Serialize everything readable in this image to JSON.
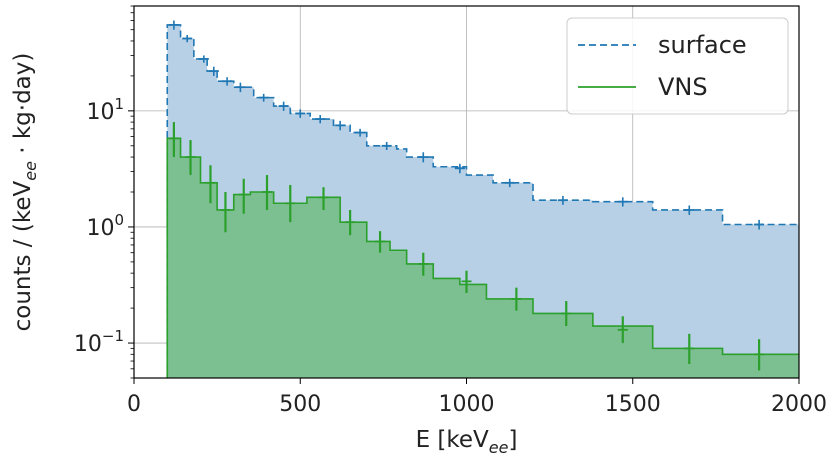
{
  "chart_data": {
    "type": "step-histogram",
    "xlabel_prefix": "E [keV",
    "xlabel_sub": "ee",
    "xlabel_suffix": "]",
    "ylabel_prefix": "counts / (keV",
    "ylabel_sub": "ee",
    "ylabel_suffix": " · kg·day)",
    "xlim": [
      0,
      2000
    ],
    "ylim": [
      0.05,
      80
    ],
    "yscale": "log",
    "grid": true,
    "legend_position": "upper right",
    "x_ticks": [
      0,
      500,
      1000,
      1500,
      2000
    ],
    "y_ticks": [
      {
        "value": 10,
        "base": "10",
        "exp": "1"
      },
      {
        "value": 1,
        "base": "10",
        "exp": "0"
      },
      {
        "value": 0.1,
        "base": "10",
        "exp": "−1"
      }
    ],
    "series": [
      {
        "name": "surface",
        "style": "dashed",
        "color": "#1f77b4",
        "fill": "#b7d0e5",
        "bins": [
          [
            100,
            140,
            55
          ],
          [
            140,
            180,
            42
          ],
          [
            180,
            220,
            28
          ],
          [
            220,
            250,
            22
          ],
          [
            250,
            300,
            18
          ],
          [
            300,
            360,
            16
          ],
          [
            360,
            420,
            13
          ],
          [
            420,
            470,
            11
          ],
          [
            470,
            530,
            9.5
          ],
          [
            530,
            600,
            8.5
          ],
          [
            600,
            650,
            7.5
          ],
          [
            650,
            700,
            6.5
          ],
          [
            700,
            790,
            5.0
          ],
          [
            790,
            820,
            4.7
          ],
          [
            820,
            900,
            4.0
          ],
          [
            900,
            1000,
            3.3
          ],
          [
            1000,
            1080,
            2.8
          ],
          [
            1080,
            1200,
            2.4
          ],
          [
            1200,
            1380,
            1.7
          ],
          [
            1380,
            1560,
            1.65
          ],
          [
            1560,
            1770,
            1.4
          ],
          [
            1770,
            2000,
            1.05
          ]
        ],
        "errors": [
          [
            120,
            55,
            50,
            60
          ],
          [
            160,
            42,
            39,
            45
          ],
          [
            210,
            28,
            26,
            30
          ],
          [
            240,
            22,
            20,
            24
          ],
          [
            280,
            18,
            16.5,
            19.5
          ],
          [
            320,
            16,
            14.5,
            17.5
          ],
          [
            390,
            13,
            12,
            14
          ],
          [
            450,
            11,
            10,
            12
          ],
          [
            500,
            9.5,
            8.7,
            10.3
          ],
          [
            560,
            8.5,
            7.8,
            9.2
          ],
          [
            620,
            7.5,
            6.8,
            8.2
          ],
          [
            680,
            6.5,
            6.0,
            7.0
          ],
          [
            760,
            5.0,
            4.6,
            5.4
          ],
          [
            870,
            4.0,
            3.6,
            4.4
          ],
          [
            980,
            3.2,
            2.9,
            3.5
          ],
          [
            1130,
            2.4,
            2.2,
            2.6
          ],
          [
            1290,
            1.7,
            1.55,
            1.85
          ],
          [
            1470,
            1.65,
            1.5,
            1.8
          ],
          [
            1670,
            1.4,
            1.27,
            1.53
          ],
          [
            1880,
            1.05,
            0.95,
            1.15
          ]
        ]
      },
      {
        "name": "VNS",
        "style": "solid",
        "color": "#2ca02c",
        "fill": "#7cbf90",
        "bins": [
          [
            100,
            140,
            5.8
          ],
          [
            140,
            200,
            4.0
          ],
          [
            200,
            250,
            2.4
          ],
          [
            250,
            300,
            1.4
          ],
          [
            300,
            350,
            1.9
          ],
          [
            350,
            420,
            2.0
          ],
          [
            420,
            520,
            1.6
          ],
          [
            520,
            620,
            1.8
          ],
          [
            620,
            700,
            1.1
          ],
          [
            700,
            770,
            0.75
          ],
          [
            770,
            820,
            0.63
          ],
          [
            820,
            900,
            0.48
          ],
          [
            900,
            980,
            0.36
          ],
          [
            980,
            1060,
            0.32
          ],
          [
            1060,
            1200,
            0.24
          ],
          [
            1200,
            1380,
            0.18
          ],
          [
            1380,
            1560,
            0.14
          ],
          [
            1560,
            1770,
            0.09
          ],
          [
            1770,
            2000,
            0.08
          ]
        ],
        "errors": [
          [
            120,
            5.8,
            4.0,
            8.0
          ],
          [
            170,
            4.0,
            2.8,
            5.6
          ],
          [
            230,
            2.4,
            1.6,
            3.4
          ],
          [
            275,
            1.4,
            0.9,
            2.0
          ],
          [
            330,
            1.9,
            1.3,
            2.6
          ],
          [
            400,
            2.0,
            1.4,
            2.8
          ],
          [
            470,
            1.6,
            1.1,
            2.3
          ],
          [
            570,
            1.8,
            1.4,
            2.2
          ],
          [
            650,
            1.1,
            0.85,
            1.4
          ],
          [
            740,
            0.75,
            0.6,
            0.92
          ],
          [
            870,
            0.48,
            0.38,
            0.6
          ],
          [
            1000,
            0.34,
            0.27,
            0.42
          ],
          [
            1150,
            0.24,
            0.19,
            0.3
          ],
          [
            1300,
            0.18,
            0.14,
            0.23
          ],
          [
            1470,
            0.13,
            0.1,
            0.17
          ],
          [
            1670,
            0.09,
            0.066,
            0.12
          ],
          [
            1880,
            0.08,
            0.058,
            0.108
          ]
        ]
      }
    ]
  }
}
